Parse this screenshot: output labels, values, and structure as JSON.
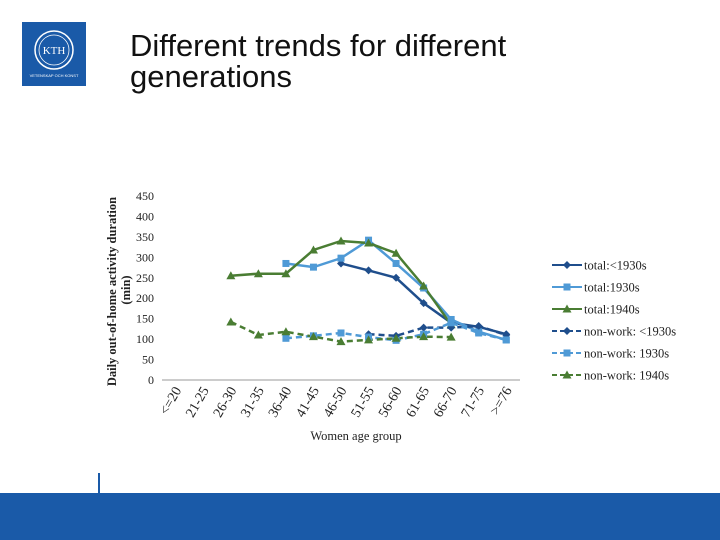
{
  "logo": {
    "text": "KTH",
    "subtext": "VETENSKAP OCH KONST"
  },
  "slide": {
    "title": "Different trends for different generations"
  },
  "colors": {
    "dark_blue": "#1f4e8c",
    "light_blue": "#4f9ad6",
    "green": "#4a7d33",
    "brand": "#1a5aa8"
  },
  "chart_data": {
    "type": "line",
    "title": "",
    "xlabel": "Women age group",
    "ylabel": "Daily out-of-home activity duration (min)",
    "ylim": [
      0,
      450
    ],
    "yticks": [
      "0",
      "50",
      "100",
      "150",
      "200",
      "250",
      "300",
      "350",
      "400",
      "450"
    ],
    "categories": [
      "<=20",
      "21-25",
      "26-30",
      "31-35",
      "36-40",
      "41-45",
      "46-50",
      "51-55",
      "56-60",
      "61-65",
      "66-70",
      "71-75",
      ">=76"
    ],
    "series": [
      {
        "name": "total:<1930s",
        "style": "solid",
        "color": "#1f4e8c",
        "marker": "diamond",
        "values": [
          null,
          null,
          null,
          null,
          null,
          null,
          285,
          268,
          250,
          188,
          140,
          130,
          112
        ]
      },
      {
        "name": "total:1930s",
        "style": "solid",
        "color": "#4f9ad6",
        "marker": "square",
        "values": [
          null,
          null,
          null,
          null,
          285,
          276,
          298,
          342,
          285,
          225,
          148,
          118,
          98
        ]
      },
      {
        "name": "total:1940s",
        "style": "solid",
        "color": "#4a7d33",
        "marker": "triangle",
        "values": [
          null,
          null,
          255,
          260,
          260,
          318,
          340,
          335,
          310,
          230,
          135,
          null,
          null
        ]
      },
      {
        "name": "non-work: <1930s",
        "style": "dashed",
        "color": "#1f4e8c",
        "marker": "diamond",
        "values": [
          null,
          null,
          null,
          null,
          null,
          null,
          null,
          112,
          108,
          128,
          128,
          132,
          110
        ]
      },
      {
        "name": "non-work: 1930s",
        "style": "dashed",
        "color": "#4f9ad6",
        "marker": "square",
        "values": [
          null,
          null,
          null,
          null,
          102,
          108,
          115,
          105,
          97,
          112,
          140,
          115,
          98
        ]
      },
      {
        "name": "non-work: 1940s",
        "style": "dashed",
        "color": "#4a7d33",
        "marker": "triangle",
        "values": [
          null,
          null,
          142,
          110,
          118,
          106,
          94,
          98,
          102,
          106,
          105,
          null,
          null
        ]
      }
    ],
    "legend_position": "right"
  }
}
